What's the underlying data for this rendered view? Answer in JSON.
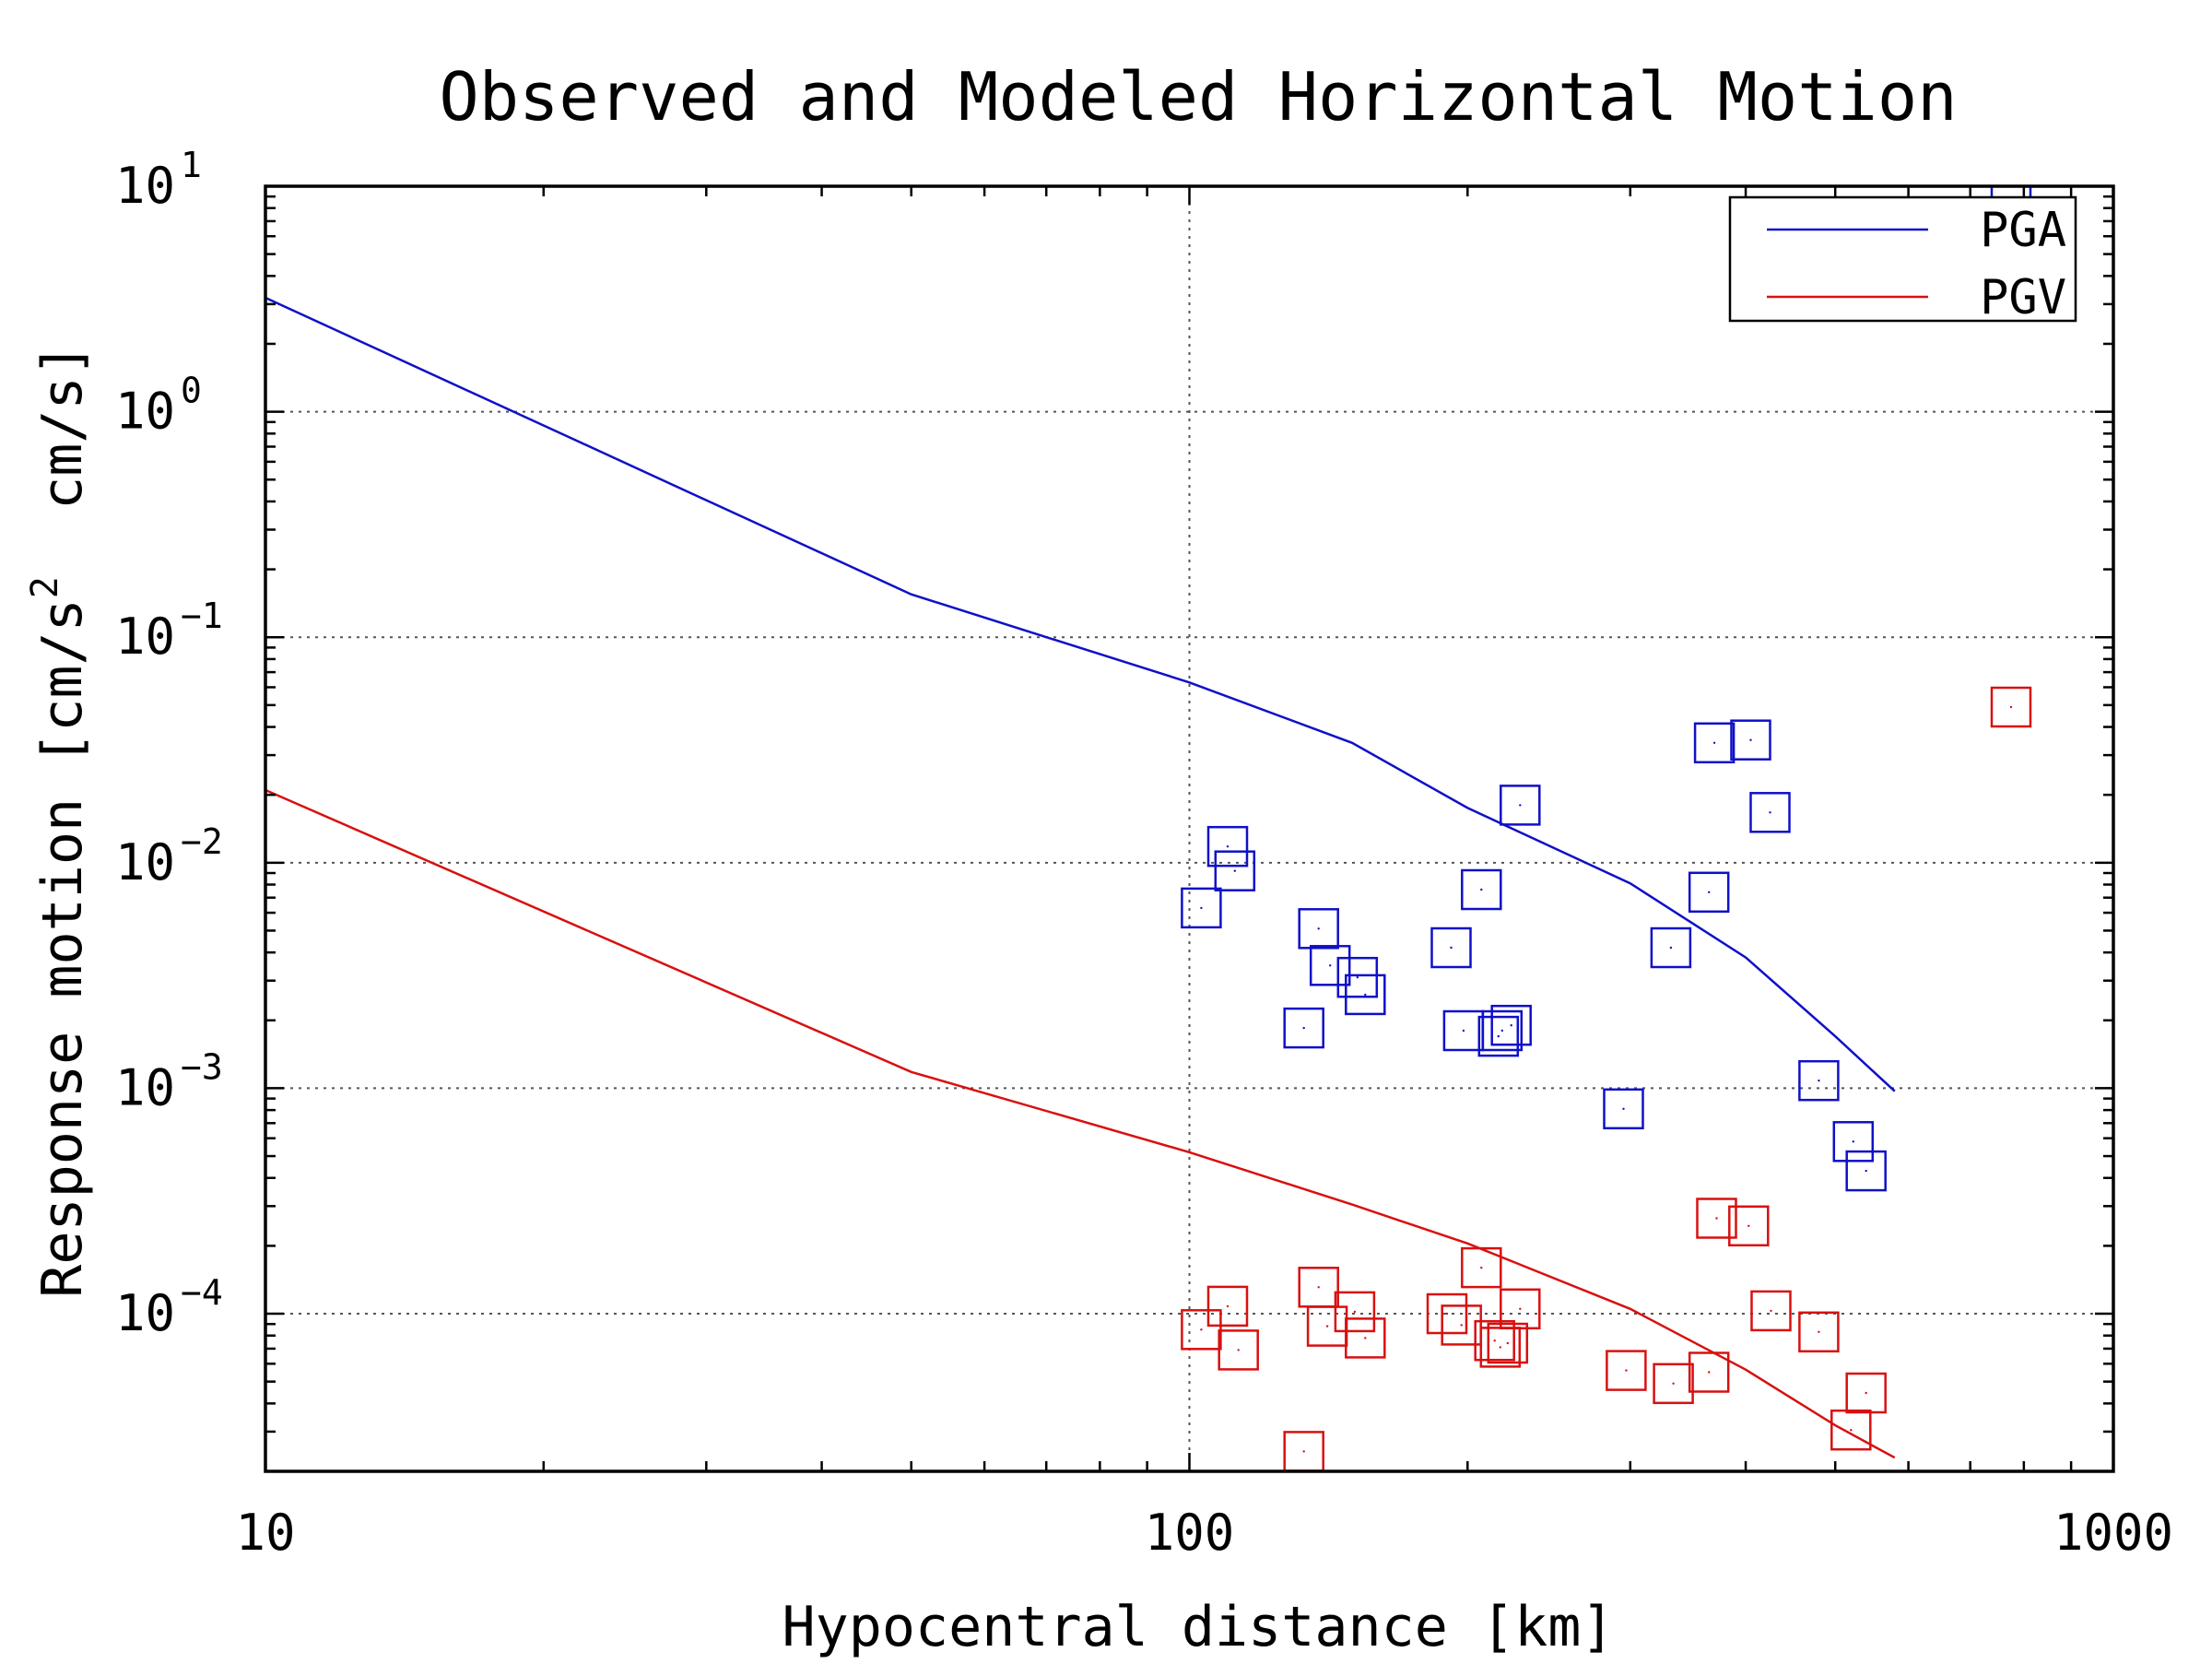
{
  "chart_data": {
    "type": "scatter",
    "title": "Observed and Modeled Horizontal Motion",
    "xlabel": "Hypocentral distance [km]",
    "ylabel_parts": [
      "Response motion [cm/s",
      "2",
      "  cm/s]"
    ],
    "x_scale": "log",
    "y_scale": "log",
    "xlim": [
      10,
      1000
    ],
    "ylim": [
      2e-05,
      10
    ],
    "x_ticks": [
      {
        "value": 10,
        "label": "10"
      },
      {
        "value": 100,
        "label": "100"
      },
      {
        "value": 1000,
        "label": "1000"
      }
    ],
    "y_ticks": [
      {
        "value": 10,
        "base": "10",
        "exp": "1"
      },
      {
        "value": 1,
        "base": "10",
        "exp": "0"
      },
      {
        "value": 0.1,
        "base": "10",
        "exp": "−1"
      },
      {
        "value": 0.01,
        "base": "10",
        "exp": "−2"
      },
      {
        "value": 0.001,
        "base": "10",
        "exp": "−3"
      },
      {
        "value": 0.0001,
        "base": "10",
        "exp": "−4"
      }
    ],
    "grid": true,
    "legend": {
      "position": "top-right",
      "entries": [
        {
          "label": "PGA",
          "color": "#1010c8"
        },
        {
          "label": "PGV",
          "color": "#d81010"
        }
      ]
    },
    "series": [
      {
        "name": "PGA",
        "kind": "line",
        "color": "#1010c8",
        "x": [
          10,
          50,
          100,
          150,
          200,
          300,
          400,
          500,
          580
        ],
        "y": [
          3.2,
          0.155,
          0.063,
          0.034,
          0.0175,
          0.0081,
          0.0038,
          0.0017,
          0.00097
        ]
      },
      {
        "name": "PGV",
        "kind": "line",
        "color": "#d81010",
        "x": [
          10,
          50,
          100,
          150,
          200,
          300,
          400,
          500,
          580
        ],
        "y": [
          0.021,
          0.00118,
          0.00052,
          0.000305,
          0.000205,
          0.000105,
          5.65e-05,
          3.2e-05,
          2.3e-05
        ]
      },
      {
        "name": "PGA observed",
        "kind": "scatter",
        "marker": "square",
        "color": "#1010c8",
        "x": [
          103,
          110,
          112,
          133,
          138,
          142,
          152,
          155,
          192,
          198,
          207,
          216,
          218,
          223,
          228,
          295,
          332,
          365,
          370,
          405,
          425,
          480,
          523,
          540,
          775
        ],
        "y": [
          0.0063,
          0.0118,
          0.0092,
          0.00185,
          0.0051,
          0.0035,
          0.0031,
          0.0026,
          0.0042,
          0.0018,
          0.0076,
          0.0017,
          0.0018,
          0.0019,
          0.018,
          0.00081,
          0.0042,
          0.0074,
          0.034,
          0.035,
          0.0167,
          0.00108,
          0.00058,
          0.00043,
          8.2
        ]
      },
      {
        "name": "PGV observed",
        "kind": "scatter",
        "marker": "square",
        "color": "#d81010",
        "x": [
          103,
          110,
          113,
          133,
          138,
          141,
          151,
          155,
          190,
          197,
          207,
          214,
          217,
          221,
          228,
          297,
          334,
          365,
          372,
          403,
          426,
          480,
          520,
          540,
          775
        ],
        "y": [
          8.5e-05,
          0.000108,
          6.9e-05,
          2.45e-05,
          0.000131,
          8.8e-05,
          0.000102,
          7.8e-05,
          0.0001,
          8.9e-05,
          0.00016,
          7.6e-05,
          7.1e-05,
          7.4e-05,
          0.000105,
          5.6e-05,
          4.9e-05,
          5.5e-05,
          0.000265,
          0.000245,
          0.000103,
          8.3e-05,
          3.05e-05,
          4.45e-05,
          0.049
        ]
      }
    ]
  }
}
